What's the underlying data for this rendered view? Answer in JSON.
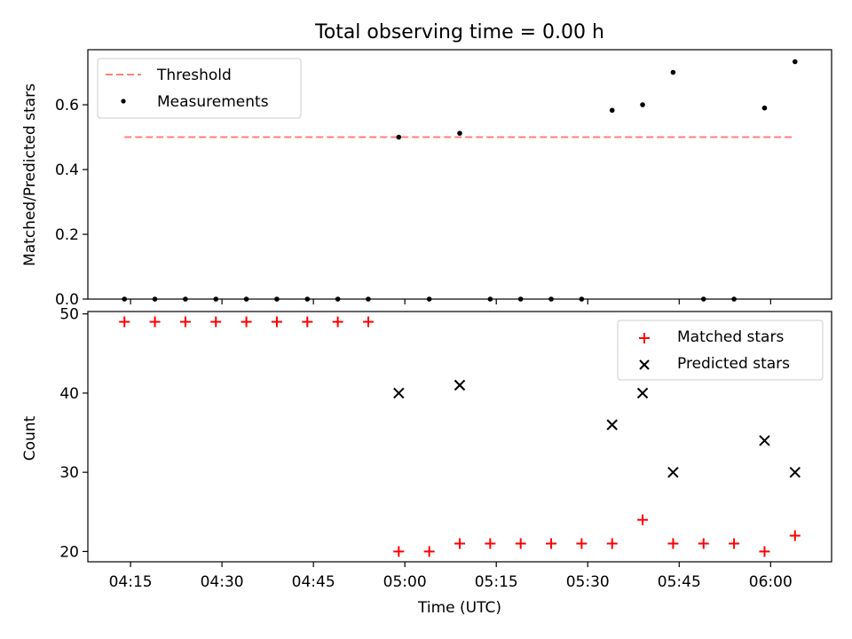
{
  "figure": {
    "title": "Total observing time = 0.00 h"
  },
  "colors": {
    "threshold": "#ff7f7f",
    "measurements": "#000000",
    "matched": "#ff0000",
    "predicted": "#000000",
    "axes": "#000000",
    "background": "#ffffff"
  },
  "chart_data": [
    {
      "type": "scatter",
      "panel": "top",
      "title": "Total observing time = 0.00 h",
      "xlabel": "",
      "ylabel": "Matched/Predicted stars",
      "xlim": [
        "04:08",
        "06:10"
      ],
      "ylim": [
        0,
        0.77
      ],
      "y_ticks": [
        0.0,
        0.2,
        0.4,
        0.6
      ],
      "y_tick_labels": [
        "0.0",
        "0.2",
        "0.4",
        "0.6"
      ],
      "x_ticks": [
        "04:15",
        "04:30",
        "04:45",
        "05:00",
        "05:15",
        "05:30",
        "05:45",
        "06:00"
      ],
      "x_tick_labels_shown": false,
      "grid": false,
      "legend": {
        "placement": "upper left"
      },
      "series": [
        {
          "name": "Threshold",
          "kind": "line",
          "style": "dashed",
          "x": [
            "04:14",
            "06:04"
          ],
          "y": [
            0.5,
            0.5
          ]
        },
        {
          "name": "Measurements",
          "kind": "points",
          "x": [
            "04:14",
            "04:19",
            "04:24",
            "04:29",
            "04:34",
            "04:39",
            "04:44",
            "04:49",
            "04:54",
            "04:59",
            "05:04",
            "05:09",
            "05:14",
            "05:19",
            "05:24",
            "05:29",
            "05:34",
            "05:39",
            "05:44",
            "05:49",
            "05:54",
            "05:59",
            "06:04"
          ],
          "y": [
            0,
            0,
            0,
            0,
            0,
            0,
            0,
            0,
            0,
            0.5,
            0,
            0.512,
            0,
            0,
            0,
            0,
            0.583,
            0.6,
            0.7,
            0,
            0,
            0.59,
            0.733
          ]
        }
      ]
    },
    {
      "type": "scatter",
      "panel": "bottom",
      "xlabel": "Time (UTC)",
      "ylabel": "Count",
      "xlim": [
        "04:08",
        "06:10"
      ],
      "ylim": [
        18.7,
        50.3
      ],
      "y_ticks": [
        20,
        30,
        40,
        50
      ],
      "y_tick_labels": [
        "20",
        "30",
        "40",
        "50"
      ],
      "x_ticks": [
        "04:15",
        "04:30",
        "04:45",
        "05:00",
        "05:15",
        "05:30",
        "05:45",
        "06:00"
      ],
      "x_tick_labels": [
        "04:15",
        "04:30",
        "04:45",
        "05:00",
        "05:15",
        "05:30",
        "05:45",
        "06:00"
      ],
      "grid": false,
      "legend": {
        "placement": "upper right"
      },
      "series": [
        {
          "name": "Matched stars",
          "marker": "+",
          "x": [
            "04:14",
            "04:19",
            "04:24",
            "04:29",
            "04:34",
            "04:39",
            "04:44",
            "04:49",
            "04:54",
            "04:59",
            "05:04",
            "05:09",
            "05:14",
            "05:19",
            "05:24",
            "05:29",
            "05:34",
            "05:39",
            "05:44",
            "05:49",
            "05:54",
            "05:59",
            "06:04"
          ],
          "y": [
            49,
            49,
            49,
            49,
            49,
            49,
            49,
            49,
            49,
            20,
            20,
            21,
            21,
            21,
            21,
            21,
            21,
            24,
            21,
            21,
            21,
            20,
            22
          ]
        },
        {
          "name": "Predicted stars",
          "marker": "x",
          "x": [
            "04:59",
            "05:09",
            "05:34",
            "05:39",
            "05:44",
            "05:59",
            "06:04"
          ],
          "y": [
            40,
            41,
            36,
            40,
            30,
            34,
            30
          ]
        }
      ]
    }
  ]
}
